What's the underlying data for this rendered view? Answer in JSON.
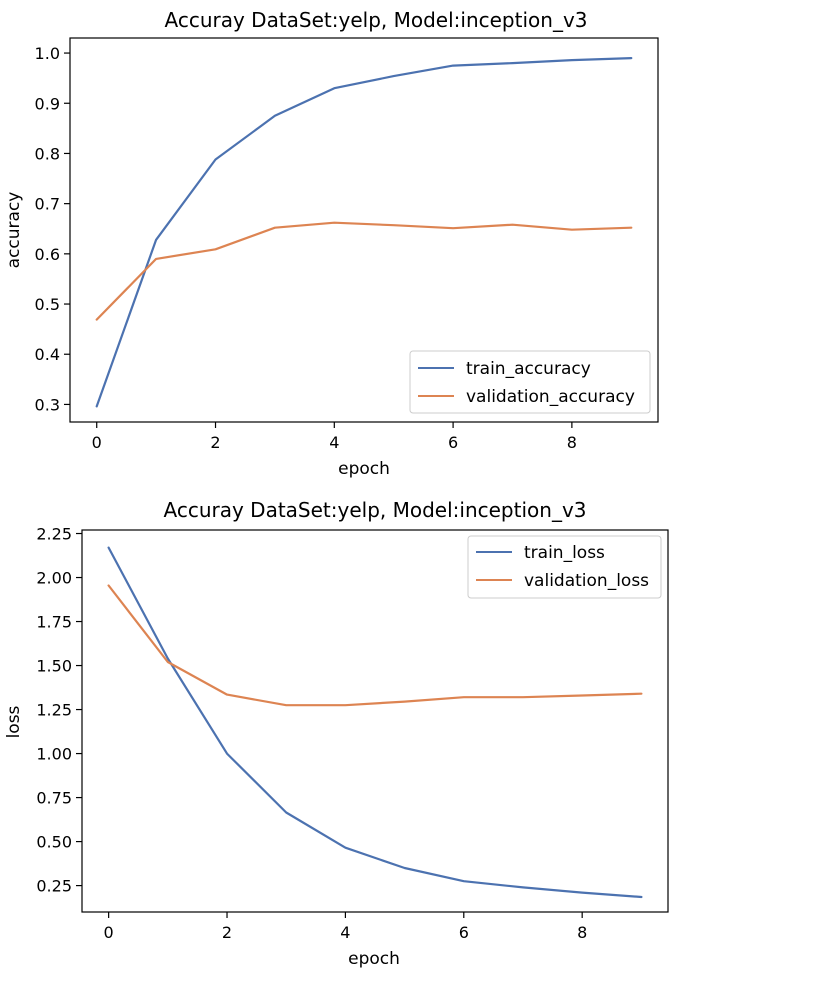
{
  "chart_data": [
    {
      "type": "line",
      "title": "Accuray DataSet:yelp, Model:inception_v3",
      "xlabel": "epoch",
      "ylabel": "accuracy",
      "x": [
        0,
        1,
        2,
        3,
        4,
        5,
        6,
        7,
        8,
        9
      ],
      "xlim": [
        -0.45,
        9.45
      ],
      "ylim": [
        0.265,
        1.03
      ],
      "xticks": [
        0,
        2,
        4,
        6,
        8
      ],
      "yticks": [
        0.3,
        0.4,
        0.5,
        0.6,
        0.7,
        0.8,
        0.9,
        1.0
      ],
      "ytick_labels": [
        "0.3",
        "0.4",
        "0.5",
        "0.6",
        "0.7",
        "0.8",
        "0.9",
        "1.0"
      ],
      "grid": false,
      "legend": "lower-right",
      "series": [
        {
          "name": "train_accuracy",
          "color": "#4C72B0",
          "values": [
            0.296,
            0.628,
            0.788,
            0.875,
            0.93,
            0.954,
            0.975,
            0.98,
            0.986,
            0.99
          ]
        },
        {
          "name": "validation_accuracy",
          "color": "#DD8452",
          "values": [
            0.469,
            0.59,
            0.609,
            0.652,
            0.662,
            0.657,
            0.651,
            0.658,
            0.648,
            0.652
          ]
        }
      ]
    },
    {
      "type": "line",
      "title": "Accuray DataSet:yelp, Model:inception_v3",
      "xlabel": "epoch",
      "ylabel": "loss",
      "x": [
        0,
        1,
        2,
        3,
        4,
        5,
        6,
        7,
        8,
        9
      ],
      "xlim": [
        -0.45,
        9.45
      ],
      "ylim": [
        0.1,
        2.27
      ],
      "xticks": [
        0,
        2,
        4,
        6,
        8
      ],
      "yticks": [
        0.25,
        0.5,
        0.75,
        1.0,
        1.25,
        1.5,
        1.75,
        2.0,
        2.25
      ],
      "ytick_labels": [
        "0.25",
        "0.50",
        "0.75",
        "1.00",
        "1.25",
        "1.50",
        "1.75",
        "2.00",
        "2.25"
      ],
      "grid": false,
      "legend": "upper-right",
      "series": [
        {
          "name": "train_loss",
          "color": "#4C72B0",
          "values": [
            2.17,
            1.54,
            1.0,
            0.665,
            0.465,
            0.35,
            0.275,
            0.24,
            0.21,
            0.185
          ]
        },
        {
          "name": "validation_loss",
          "color": "#DD8452",
          "values": [
            1.955,
            1.52,
            1.335,
            1.275,
            1.275,
            1.295,
            1.32,
            1.32,
            1.33,
            1.34
          ]
        }
      ]
    }
  ]
}
